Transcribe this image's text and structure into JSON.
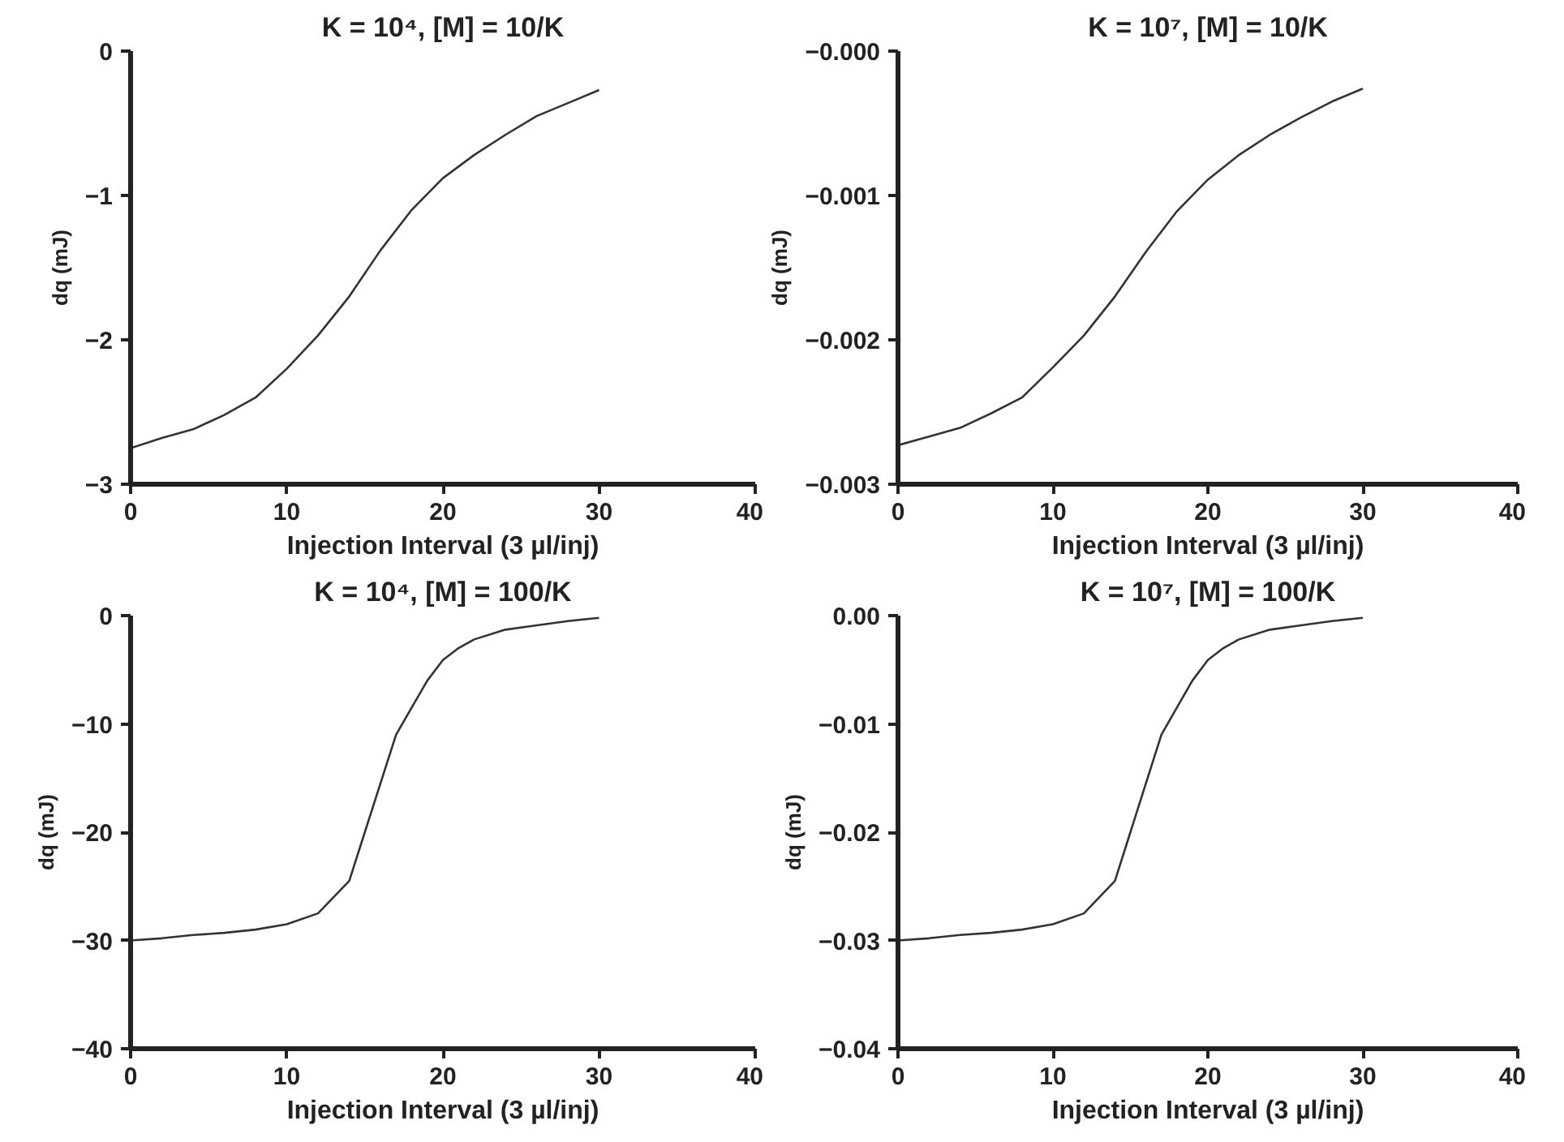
{
  "chart_data": [
    {
      "type": "line",
      "title": "K = 10⁴, [M] = 10/K",
      "xlabel": "Injection Interval (3 µl/inj)",
      "ylabel": "dq (mJ)",
      "xlim": [
        0,
        40
      ],
      "ylim": [
        -3,
        0
      ],
      "xticks": [
        0,
        10,
        20,
        30,
        40
      ],
      "yticks": [
        {
          "value": -3,
          "label": "−3"
        },
        {
          "value": -2,
          "label": "−2"
        },
        {
          "value": -1,
          "label": "−1"
        },
        0
      ],
      "x": [
        0,
        2,
        4,
        6,
        8,
        10,
        12,
        14,
        16,
        18,
        20,
        22,
        24,
        26,
        28,
        30
      ],
      "series": [
        {
          "color": "#333333",
          "values": [
            -2.75,
            -2.68,
            -2.62,
            -2.52,
            -2.4,
            -2.2,
            -1.97,
            -1.7,
            -1.38,
            -1.1,
            -0.88,
            -0.72,
            -0.58,
            -0.45,
            -0.36,
            -0.27
          ]
        }
      ]
    },
    {
      "type": "line",
      "title": "K = 10⁷, [M] = 10/K",
      "xlabel": "Injection Interval (3 µl/inj)",
      "ylabel": "dq (mJ)",
      "xlim": [
        0,
        40
      ],
      "ylim": [
        -0.003,
        0
      ],
      "xticks": [
        0,
        10,
        20,
        30,
        40
      ],
      "yticks": [
        {
          "value": -0.003,
          "label": "−0.003"
        },
        {
          "value": -0.002,
          "label": "−0.002"
        },
        {
          "value": -0.001,
          "label": "−0.001"
        },
        {
          "value": 0,
          "label": "−0.000"
        }
      ],
      "x": [
        0,
        2,
        4,
        6,
        8,
        10,
        12,
        14,
        16,
        18,
        20,
        22,
        24,
        26,
        28,
        30
      ],
      "series": [
        {
          "color": "#333333",
          "values": [
            -0.00273,
            -0.00267,
            -0.00261,
            -0.00251,
            -0.0024,
            -0.00219,
            -0.00197,
            -0.0017,
            -0.00139,
            -0.00111,
            -0.00089,
            -0.00072,
            -0.00058,
            -0.00046,
            -0.00035,
            -0.00026
          ]
        }
      ]
    },
    {
      "type": "line",
      "title": "K = 10⁴, [M] = 100/K",
      "xlabel": "Injection Interval (3 µl/inj)",
      "ylabel": "dq (mJ)",
      "xlim": [
        0,
        40
      ],
      "ylim": [
        -40,
        0
      ],
      "xticks": [
        0,
        10,
        20,
        30,
        40
      ],
      "yticks": [
        {
          "value": -40,
          "label": "−40"
        },
        {
          "value": -30,
          "label": "−30"
        },
        {
          "value": -20,
          "label": "−20"
        },
        {
          "value": -10,
          "label": "−10"
        },
        0
      ],
      "x": [
        0,
        2,
        4,
        6,
        8,
        10,
        12,
        13,
        14,
        15,
        16,
        17,
        18,
        19,
        20,
        21,
        22,
        24,
        26,
        28,
        30
      ],
      "series": [
        {
          "color": "#333333",
          "values": [
            -30,
            -29.8,
            -29.5,
            -29.3,
            -29,
            -28.5,
            -27.5,
            -26,
            -24.5,
            -20,
            -15.5,
            -11,
            -8.5,
            -6,
            -4.1,
            -3,
            -2.2,
            -1.3,
            -0.9,
            -0.5,
            -0.2
          ]
        }
      ]
    },
    {
      "type": "line",
      "title": "K = 10⁷, [M] = 100/K",
      "xlabel": "Injection Interval (3 µl/inj)",
      "ylabel": "dq (mJ)",
      "xlim": [
        0,
        40
      ],
      "ylim": [
        -0.04,
        0
      ],
      "xticks": [
        0,
        10,
        20,
        30,
        40
      ],
      "yticks": [
        {
          "value": -0.04,
          "label": "−0.04"
        },
        {
          "value": -0.03,
          "label": "−0.03"
        },
        {
          "value": -0.02,
          "label": "−0.02"
        },
        {
          "value": -0.01,
          "label": "−0.01"
        },
        {
          "value": 0,
          "label": "0.00"
        }
      ],
      "x": [
        0,
        2,
        4,
        6,
        8,
        10,
        12,
        13,
        14,
        15,
        16,
        17,
        18,
        19,
        20,
        21,
        22,
        24,
        26,
        28,
        30
      ],
      "series": [
        {
          "color": "#333333",
          "values": [
            -0.03,
            -0.0298,
            -0.0295,
            -0.0293,
            -0.029,
            -0.0285,
            -0.0275,
            -0.026,
            -0.0245,
            -0.02,
            -0.0155,
            -0.011,
            -0.0085,
            -0.006,
            -0.0041,
            -0.003,
            -0.0022,
            -0.0013,
            -0.0009,
            -0.0005,
            -0.0002
          ]
        }
      ]
    }
  ]
}
